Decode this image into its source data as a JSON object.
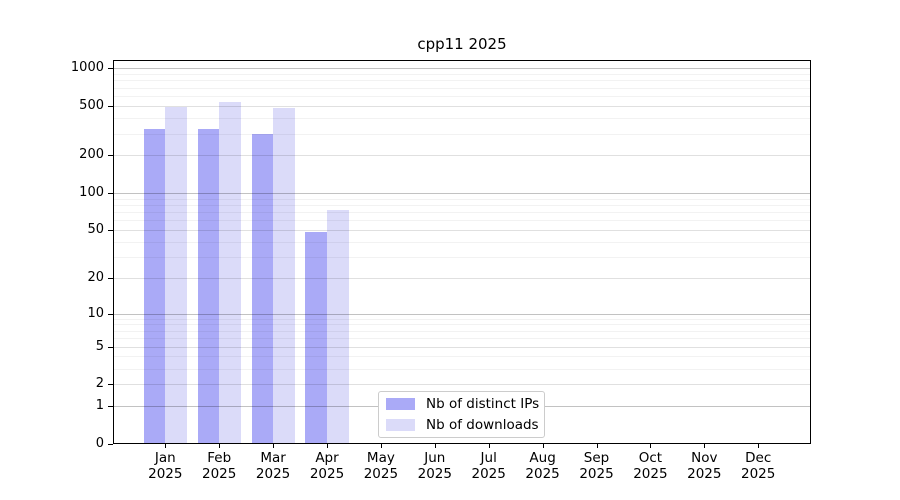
{
  "chart_data": {
    "type": "bar",
    "title": "cpp11 2025",
    "x_tick_labels": [
      [
        "Jan",
        "2025"
      ],
      [
        "Feb",
        "2025"
      ],
      [
        "Mar",
        "2025"
      ],
      [
        "Apr",
        "2025"
      ],
      [
        "May",
        "2025"
      ],
      [
        "Jun",
        "2025"
      ],
      [
        "Jul",
        "2025"
      ],
      [
        "Aug",
        "2025"
      ],
      [
        "Sep",
        "2025"
      ],
      [
        "Oct",
        "2025"
      ],
      [
        "Nov",
        "2025"
      ],
      [
        "Dec",
        "2025"
      ]
    ],
    "series": [
      {
        "name": "Nb of distinct IPs",
        "color": "#aaaaf7",
        "values": [
          325,
          325,
          295,
          48,
          0,
          0,
          0,
          0,
          0,
          0,
          0,
          0
        ]
      },
      {
        "name": "Nb of downloads",
        "color": "#dbdbf9",
        "values": [
          490,
          535,
          480,
          73,
          0,
          0,
          0,
          0,
          0,
          0,
          0,
          0
        ]
      }
    ],
    "y_scale": "log10(1+x)",
    "ylim": [
      0,
      1160
    ],
    "y_major_ticks": [
      0,
      1,
      2,
      5,
      10,
      20,
      50,
      100,
      200,
      500,
      1000
    ],
    "y_decade_ticks": [
      1,
      10,
      100,
      1000
    ],
    "y_minor_gridlines": [
      3,
      4,
      6,
      7,
      8,
      9,
      30,
      40,
      60,
      70,
      80,
      90,
      300,
      400,
      600,
      700,
      800,
      900
    ],
    "grid": true,
    "legend_position": "lower center",
    "colors": {
      "frame": "#000000",
      "legend_border": "#cccccc",
      "background": "#ffffff"
    }
  }
}
